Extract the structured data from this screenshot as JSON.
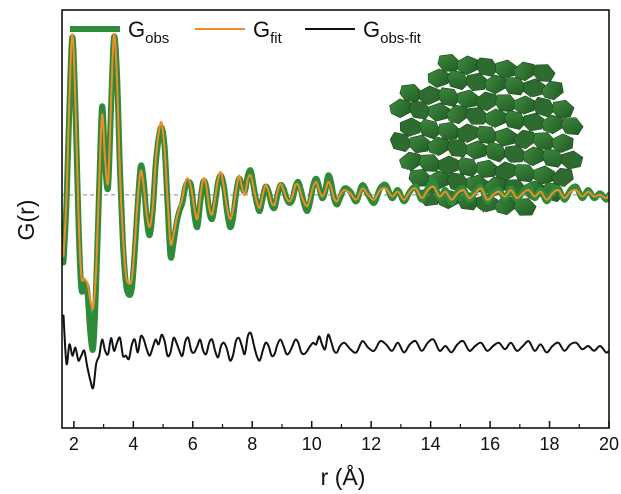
{
  "chart_data": {
    "type": "line",
    "xlabel": "r (Å)",
    "ylabel": "G(r)",
    "xlim": [
      1.6,
      20
    ],
    "xticks": [
      2,
      4,
      6,
      8,
      10,
      12,
      14,
      16,
      18,
      20
    ],
    "ylim": [
      -1.45,
      1.15
    ],
    "yticks_shown": false,
    "grid": false,
    "baseline_y": 0,
    "legend_position": "top",
    "series": [
      {
        "key": "obs",
        "name": "G",
        "name_subscript": "obs",
        "color": "#2e8b3a",
        "x": [
          1.65,
          1.75,
          1.85,
          1.95,
          2.05,
          2.15,
          2.25,
          2.35,
          2.45,
          2.55,
          2.65,
          2.75,
          2.85,
          2.95,
          3.05,
          3.15,
          3.25,
          3.35,
          3.45,
          3.55,
          3.65,
          3.75,
          3.85,
          3.95,
          4.05,
          4.15,
          4.25,
          4.35,
          4.45,
          4.55,
          4.65,
          4.75,
          4.85,
          4.95,
          5.05,
          5.15,
          5.25,
          5.35,
          5.45,
          5.55,
          5.65,
          5.75,
          5.85,
          5.95,
          6.05,
          6.15,
          6.25,
          6.35,
          6.45,
          6.55,
          6.65,
          6.75,
          6.85,
          6.95,
          7.05,
          7.15,
          7.25,
          7.35,
          7.45,
          7.55,
          7.65,
          7.75,
          7.85,
          7.95,
          8.05,
          8.15,
          8.25,
          8.35,
          8.45,
          8.55,
          8.65,
          8.75,
          8.85,
          8.95,
          9.05,
          9.15,
          9.25,
          9.35,
          9.45,
          9.55,
          9.65,
          9.75,
          9.85,
          9.95,
          10.05,
          10.15,
          10.25,
          10.35,
          10.45,
          10.55,
          10.65,
          10.75,
          10.85,
          10.95,
          11.1,
          11.3,
          11.5,
          11.7,
          11.9,
          12.1,
          12.3,
          12.5,
          12.7,
          12.9,
          13.1,
          13.3,
          13.5,
          13.7,
          13.9,
          14.1,
          14.3,
          14.5,
          14.7,
          14.9,
          15.1,
          15.3,
          15.5,
          15.7,
          15.9,
          16.1,
          16.3,
          16.5,
          16.7,
          16.9,
          17.1,
          17.3,
          17.5,
          17.7,
          17.9,
          18.1,
          18.3,
          18.5,
          18.7,
          18.9,
          19.1,
          19.3,
          19.5,
          19.7,
          19.9,
          20.0
        ],
        "y": [
          -0.42,
          -0.05,
          0.55,
          0.98,
          0.55,
          -0.15,
          -0.58,
          -0.55,
          -0.6,
          -0.85,
          -0.95,
          -0.55,
          0.05,
          0.55,
          0.2,
          0.05,
          0.55,
          0.98,
          0.75,
          0.15,
          -0.3,
          -0.55,
          -0.62,
          -0.58,
          -0.35,
          -0.05,
          0.18,
          0.08,
          -0.15,
          -0.25,
          -0.1,
          0.18,
          0.35,
          0.42,
          0.3,
          -0.05,
          -0.38,
          -0.3,
          -0.18,
          -0.1,
          -0.05,
          0.05,
          0.08,
          0.05,
          -0.12,
          -0.2,
          -0.05,
          0.08,
          0.05,
          -0.1,
          -0.15,
          -0.05,
          0.08,
          0.12,
          0.05,
          -0.1,
          -0.2,
          -0.15,
          0.0,
          0.1,
          0.06,
          0.02,
          0.12,
          0.15,
          0.05,
          -0.05,
          -0.1,
          -0.02,
          0.05,
          0.02,
          -0.06,
          -0.08,
          0.0,
          0.06,
          0.04,
          -0.02,
          -0.05,
          -0.03,
          0.05,
          0.08,
          0.02,
          -0.06,
          -0.1,
          -0.04,
          0.06,
          0.1,
          0.05,
          -0.02,
          0.02,
          0.12,
          0.08,
          -0.02,
          -0.06,
          -0.02,
          0.04,
          0.02,
          -0.04,
          0.06,
          0.0,
          -0.05,
          0.04,
          0.06,
          -0.02,
          0.03,
          -0.04,
          0.02,
          0.05,
          -0.03,
          0.04,
          0.08,
          -0.02,
          0.03,
          -0.05,
          0.02,
          0.04,
          -0.03,
          0.02,
          0.05,
          -0.04,
          0.01,
          0.03,
          -0.02,
          0.04,
          -0.03,
          0.02,
          0.05,
          -0.02,
          0.03,
          -0.04,
          0.02,
          0.04,
          -0.03,
          0.03,
          0.05,
          -0.02,
          0.03,
          -0.02,
          0.01,
          -0.03,
          0.0
        ]
      },
      {
        "key": "fit",
        "name": "G",
        "name_subscript": "fit",
        "color": "#f28c28",
        "x": [
          1.65,
          1.75,
          1.85,
          1.95,
          2.05,
          2.15,
          2.25,
          2.35,
          2.45,
          2.55,
          2.65,
          2.75,
          2.85,
          2.95,
          3.05,
          3.15,
          3.25,
          3.35,
          3.45,
          3.55,
          3.65,
          3.75,
          3.85,
          3.95,
          4.05,
          4.15,
          4.25,
          4.35,
          4.45,
          4.55,
          4.65,
          4.75,
          4.85,
          4.95,
          5.05,
          5.15,
          5.25,
          5.35,
          5.45,
          5.55,
          5.65,
          5.75,
          5.85,
          5.95,
          6.05,
          6.15,
          6.25,
          6.35,
          6.45,
          6.55,
          6.65,
          6.75,
          6.85,
          6.95,
          7.05,
          7.15,
          7.25,
          7.35,
          7.45,
          7.55,
          7.65,
          7.75,
          7.85,
          7.95,
          8.05,
          8.15,
          8.25,
          8.35,
          8.45,
          8.55,
          8.65,
          8.75,
          8.85,
          8.95,
          9.05,
          9.15,
          9.25,
          9.35,
          9.45,
          9.55,
          9.65,
          9.75,
          9.85,
          9.95,
          10.05,
          10.15,
          10.25,
          10.35,
          10.45,
          10.55,
          10.65,
          10.75,
          10.85,
          10.95,
          11.1,
          11.3,
          11.5,
          11.7,
          11.9,
          12.1,
          12.3,
          12.5,
          12.7,
          12.9,
          13.1,
          13.3,
          13.5,
          13.7,
          13.9,
          14.1,
          14.3,
          14.5,
          14.7,
          14.9,
          15.1,
          15.3,
          15.5,
          15.7,
          15.9,
          16.1,
          16.3,
          16.5,
          16.7,
          16.9,
          17.1,
          17.3,
          17.5,
          17.7,
          17.9,
          18.1,
          18.3,
          18.5,
          18.7,
          18.9,
          19.1,
          19.3,
          19.5,
          19.7,
          19.9,
          20.0
        ],
        "y": [
          -0.38,
          -0.02,
          0.6,
          1.0,
          0.58,
          -0.1,
          -0.5,
          -0.52,
          -0.55,
          -0.65,
          -0.7,
          -0.45,
          0.08,
          0.5,
          0.22,
          0.08,
          0.58,
          1.0,
          0.72,
          0.12,
          -0.25,
          -0.5,
          -0.55,
          -0.52,
          -0.3,
          -0.02,
          0.15,
          0.05,
          -0.12,
          -0.2,
          -0.08,
          0.2,
          0.38,
          0.45,
          0.28,
          -0.02,
          -0.3,
          -0.25,
          -0.15,
          -0.08,
          -0.02,
          0.08,
          0.1,
          0.04,
          -0.08,
          -0.15,
          -0.02,
          0.1,
          0.06,
          -0.08,
          -0.12,
          -0.02,
          0.1,
          0.14,
          0.04,
          -0.08,
          -0.15,
          -0.1,
          0.02,
          0.12,
          0.05,
          0.0,
          0.1,
          0.12,
          0.04,
          -0.04,
          -0.08,
          0.0,
          0.06,
          0.02,
          -0.05,
          -0.06,
          0.02,
          0.07,
          0.03,
          -0.02,
          -0.04,
          -0.01,
          0.06,
          0.06,
          0.0,
          -0.05,
          -0.07,
          -0.02,
          0.05,
          0.08,
          0.03,
          -0.01,
          0.02,
          0.08,
          0.05,
          -0.02,
          -0.04,
          0.0,
          0.03,
          0.01,
          -0.03,
          0.04,
          0.0,
          -0.03,
          0.03,
          0.04,
          -0.01,
          0.02,
          -0.03,
          0.02,
          0.04,
          -0.02,
          0.03,
          0.05,
          -0.01,
          0.02,
          -0.03,
          0.01,
          0.03,
          -0.02,
          0.01,
          0.04,
          -0.03,
          0.0,
          0.02,
          -0.01,
          0.03,
          -0.02,
          0.01,
          0.03,
          -0.01,
          0.02,
          -0.03,
          0.01,
          0.03,
          -0.02,
          0.02,
          0.03,
          -0.01,
          0.02,
          -0.01,
          0.0,
          -0.02,
          0.0
        ]
      },
      {
        "key": "diff",
        "name": "G",
        "name_subscript": "obs-fit",
        "color": "#111111",
        "offset": -0.95,
        "x": [
          1.65,
          1.75,
          1.85,
          1.95,
          2.05,
          2.15,
          2.25,
          2.35,
          2.45,
          2.55,
          2.65,
          2.75,
          2.85,
          2.95,
          3.05,
          3.15,
          3.25,
          3.35,
          3.45,
          3.55,
          3.65,
          3.75,
          3.85,
          3.95,
          4.05,
          4.15,
          4.25,
          4.35,
          4.45,
          4.55,
          4.65,
          4.75,
          4.85,
          4.95,
          5.05,
          5.15,
          5.25,
          5.35,
          5.45,
          5.55,
          5.65,
          5.75,
          5.85,
          5.95,
          6.05,
          6.15,
          6.25,
          6.35,
          6.45,
          6.55,
          6.65,
          6.75,
          6.85,
          6.95,
          7.05,
          7.15,
          7.25,
          7.35,
          7.45,
          7.55,
          7.65,
          7.75,
          7.85,
          7.95,
          8.05,
          8.15,
          8.25,
          8.35,
          8.45,
          8.55,
          8.65,
          8.75,
          8.85,
          8.95,
          9.05,
          9.15,
          9.25,
          9.35,
          9.45,
          9.55,
          9.65,
          9.75,
          9.85,
          9.95,
          10.05,
          10.15,
          10.25,
          10.35,
          10.45,
          10.55,
          10.65,
          10.75,
          10.85,
          10.95,
          11.1,
          11.3,
          11.5,
          11.7,
          11.9,
          12.1,
          12.3,
          12.5,
          12.7,
          12.9,
          13.1,
          13.3,
          13.5,
          13.7,
          13.9,
          14.1,
          14.3,
          14.5,
          14.7,
          14.9,
          15.1,
          15.3,
          15.5,
          15.7,
          15.9,
          16.1,
          16.3,
          16.5,
          16.7,
          16.9,
          17.1,
          17.3,
          17.5,
          17.7,
          17.9,
          18.1,
          18.3,
          18.5,
          18.7,
          18.9,
          19.1,
          19.3,
          19.5,
          19.7,
          19.9,
          20.0
        ],
        "y": [
          0.2,
          -0.1,
          0.02,
          -0.05,
          0.0,
          -0.08,
          -0.05,
          -0.02,
          -0.12,
          -0.2,
          -0.25,
          -0.1,
          -0.05,
          0.05,
          -0.02,
          -0.04,
          0.06,
          -0.02,
          0.03,
          0.06,
          -0.05,
          -0.05,
          -0.07,
          0.02,
          0.05,
          -0.03,
          0.07,
          0.05,
          -0.01,
          -0.05,
          0.0,
          0.05,
          0.02,
          0.08,
          0.04,
          -0.05,
          -0.03,
          0.06,
          0.03,
          -0.02,
          -0.05,
          0.04,
          0.06,
          -0.02,
          -0.03,
          0.01,
          0.05,
          -0.02,
          -0.04,
          0.03,
          0.05,
          -0.02,
          -0.06,
          0.01,
          0.03,
          -0.01,
          -0.08,
          -0.05,
          0.04,
          0.06,
          0.01,
          -0.04,
          0.07,
          0.09,
          0.02,
          -0.05,
          -0.08,
          -0.02,
          0.03,
          0.01,
          -0.05,
          -0.04,
          0.02,
          0.05,
          0.01,
          -0.04,
          -0.03,
          0.01,
          0.05,
          0.03,
          -0.03,
          -0.04,
          -0.02,
          0.01,
          0.03,
          0.02,
          0.07,
          0.02,
          -0.01,
          0.08,
          0.04,
          -0.02,
          -0.03,
          0.01,
          0.03,
          -0.01,
          -0.03,
          0.04,
          0.0,
          -0.02,
          0.04,
          0.02,
          -0.02,
          0.03,
          -0.03,
          0.02,
          0.04,
          -0.02,
          0.03,
          0.05,
          -0.02,
          0.01,
          -0.03,
          0.02,
          0.04,
          -0.02,
          0.01,
          0.03,
          -0.02,
          0.01,
          0.03,
          -0.01,
          0.03,
          -0.02,
          0.01,
          0.04,
          -0.02,
          0.02,
          -0.03,
          0.01,
          0.03,
          -0.02,
          0.02,
          0.03,
          -0.01,
          0.01,
          -0.02,
          0.01,
          -0.03,
          -0.02
        ]
      }
    ],
    "inset": {
      "description_icon": "crystal-structure-polyhedra-icon",
      "color": "#2e6b2e"
    }
  }
}
